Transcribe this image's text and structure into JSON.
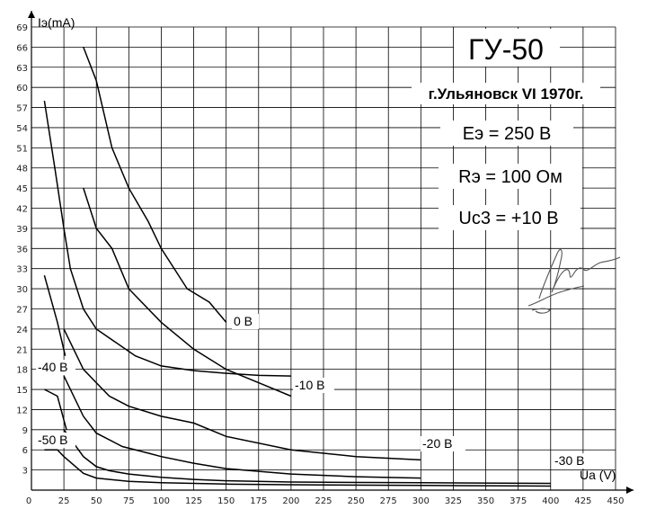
{
  "chart_data": {
    "type": "line",
    "title": "ГУ-50",
    "subtitle": "г.Ульяновск VI 1970г.",
    "annotations": [
      "Eэ = 250 В",
      "Rэ = 100 Ом",
      "Uc3 = +10 В"
    ],
    "xlabel": "Ua (V)",
    "ylabel": "Iэ(mA)",
    "xlim": [
      0,
      450
    ],
    "ylim": [
      0,
      69
    ],
    "xticks": [
      "0",
      "25",
      "50",
      "75",
      "100",
      "125",
      "150",
      "175",
      "200",
      "225",
      "250",
      "275",
      "300",
      "325",
      "350",
      "375",
      "400",
      "425",
      "450"
    ],
    "yticks": [
      "3",
      "6",
      "9",
      "12",
      "15",
      "18",
      "21",
      "24",
      "27",
      "30",
      "33",
      "36",
      "39",
      "42",
      "45",
      "48",
      "51",
      "54",
      "57",
      "60",
      "63",
      "66",
      "69"
    ],
    "grid": true,
    "series": [
      {
        "name": "0 В",
        "x": [
          40,
          50,
          62,
          75,
          90,
          100,
          120,
          137,
          150
        ],
        "y": [
          66,
          61,
          51,
          45,
          40,
          36,
          30,
          28,
          25
        ]
      },
      {
        "name": "0 В",
        "x": [
          10,
          18,
          25,
          30,
          40,
          50,
          65,
          80,
          100,
          125,
          150,
          175,
          200
        ],
        "y": [
          58,
          48,
          39,
          33,
          27,
          24,
          22,
          20,
          18.5,
          17.8,
          17.4,
          17.1,
          17
        ]
      },
      {
        "name": "-10 В",
        "x": [
          40,
          50,
          62,
          75,
          100,
          125,
          150,
          175,
          200
        ],
        "y": [
          45,
          39,
          36,
          30,
          25,
          21,
          18,
          16,
          14
        ]
      },
      {
        "name": "-20 В",
        "x": [
          25,
          40,
          50,
          70,
          90,
          100,
          125,
          150,
          175,
          200,
          250,
          300
        ],
        "y": [
          17,
          11,
          8.5,
          6.5,
          5.5,
          5,
          4,
          3.2,
          2.8,
          2.4,
          2.0,
          1.8
        ]
      },
      {
        "name": "-40 В",
        "x": [
          10,
          20,
          26
        ],
        "y": [
          32,
          25,
          20
        ]
      },
      {
        "name": "-40 В",
        "x": [
          25,
          40,
          50,
          60,
          75,
          100,
          125,
          150,
          200,
          250,
          300
        ],
        "y": [
          24,
          18,
          16,
          14,
          12.5,
          11,
          10,
          8,
          6,
          5,
          4.5
        ]
      },
      {
        "name": "-50 В",
        "x": [
          10,
          20,
          27
        ],
        "y": [
          15,
          14,
          9
        ]
      },
      {
        "name": "-50 В",
        "x": [
          25,
          40,
          50,
          60,
          75,
          100,
          125,
          150,
          200,
          300,
          400
        ],
        "y": [
          9,
          5,
          3.5,
          2.9,
          2.4,
          1.9,
          1.6,
          1.4,
          1.2,
          1.1,
          1.0
        ]
      },
      {
        "name": "-30 В",
        "x": [
          10,
          20,
          25,
          40,
          50,
          75,
          100,
          150,
          200,
          300,
          400
        ],
        "y": [
          6,
          6,
          5,
          2.5,
          1.8,
          1.3,
          1.1,
          0.9,
          0.8,
          0.7,
          0.6
        ]
      }
    ],
    "curve_labels": [
      "0 В",
      "-10 В",
      "-20 В",
      "-30 В",
      "-40 В",
      "-50 В"
    ]
  }
}
